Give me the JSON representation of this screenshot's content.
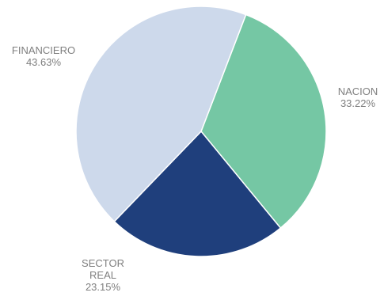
{
  "chart_data": {
    "type": "pie",
    "slices": [
      {
        "label_lines": [
          "NACION"
        ],
        "value": 33.22,
        "value_label": "33.22%",
        "color": "#75c7a4"
      },
      {
        "label_lines": [
          "SECTOR",
          "REAL"
        ],
        "value": 23.15,
        "value_label": "23.15%",
        "color": "#1f3f7c"
      },
      {
        "label_lines": [
          "FINANCIERO"
        ],
        "value": 43.63,
        "value_label": "43.63%",
        "color": "#cdd9eb"
      }
    ],
    "start_angle_deg": 21,
    "direction": "clockwise",
    "legend": "none",
    "label_color": "#7f7f7f"
  }
}
